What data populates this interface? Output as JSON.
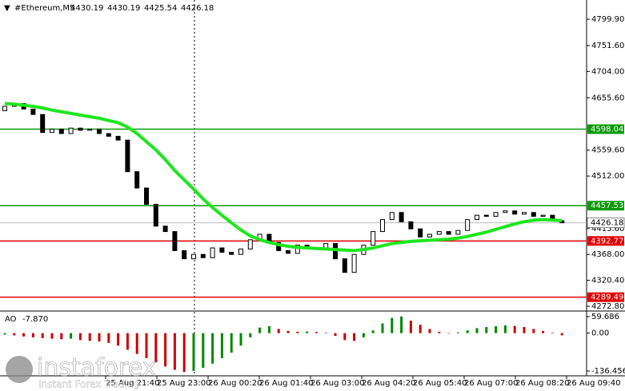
{
  "chart_data": {
    "type": "candlestick",
    "title": "#Ethereum,M5",
    "header_ohlc": [
      4430.19,
      4430.19,
      4425.54,
      4426.18
    ],
    "ylim": [
      4265.5,
      4832.3
    ],
    "yticks": [
      {
        "value": 4799.9,
        "label": "4799.90"
      },
      {
        "value": 4751.6,
        "label": "4751.60"
      },
      {
        "value": 4704,
        "label": "4704.00"
      },
      {
        "value": 4655.6,
        "label": "4655.60"
      },
      {
        "value": 4559.6,
        "label": "4559.60"
      },
      {
        "value": 4512,
        "label": "4512.00"
      },
      {
        "value": 4415.6,
        "label": "4415.60"
      },
      {
        "value": 4368,
        "label": "4368.00"
      },
      {
        "value": 4320.4,
        "label": "4320.40"
      },
      {
        "value": 4272.8,
        "label": "4272.80"
      }
    ],
    "time_labels": [
      "25 Aug 21:40",
      "25 Aug 23:00",
      "26 Aug 00:20",
      "26 Aug 01:40",
      "26 Aug 03:00",
      "26 Aug 04:20",
      "26 Aug 05:40",
      "26 Aug 07:00",
      "26 Aug 08:20",
      "26 Aug 09:40"
    ],
    "open": [
      4632,
      4640,
      4645,
      4635,
      4625,
      4592,
      4598,
      4590,
      4600,
      4596,
      4598,
      4590,
      4585,
      4578,
      4520,
      4490,
      4460,
      4420,
      4410,
      4375,
      4360,
      4368,
      4362,
      4380,
      4372,
      4368,
      4378,
      4395,
      4405,
      4390,
      4375,
      4370,
      4385,
      4380,
      4378,
      4388,
      4360,
      4335,
      4368,
      4385,
      4410,
      4432,
      4445,
      4428,
      4415,
      4400,
      4405,
      4410,
      4405,
      4412,
      4432,
      4440,
      4438,
      4445,
      4448,
      4442,
      4445,
      4438,
      4440,
      4430
    ],
    "close": [
      4640,
      4645,
      4635,
      4625,
      4592,
      4598,
      4590,
      4600,
      4596,
      4598,
      4590,
      4585,
      4578,
      4520,
      4490,
      4460,
      4420,
      4410,
      4375,
      4360,
      4368,
      4362,
      4380,
      4372,
      4368,
      4378,
      4395,
      4405,
      4390,
      4375,
      4370,
      4385,
      4380,
      4378,
      4388,
      4360,
      4335,
      4368,
      4385,
      4410,
      4432,
      4445,
      4428,
      4415,
      4400,
      4405,
      4410,
      4405,
      4412,
      4432,
      4440,
      4438,
      4445,
      4448,
      4442,
      4445,
      4438,
      4440,
      4430,
      4426.18
    ],
    "ma": {
      "color": "#1ee61e",
      "values": [
        4645,
        4644,
        4642,
        4640,
        4637,
        4633,
        4630,
        4627,
        4624,
        4621,
        4618,
        4614,
        4610,
        4602,
        4590,
        4575,
        4560,
        4542,
        4522,
        4505,
        4488,
        4470,
        4454,
        4440,
        4426,
        4413,
        4402,
        4395,
        4390,
        4386,
        4383,
        4381,
        4380,
        4379,
        4378,
        4377,
        4376,
        4375,
        4377,
        4380,
        4384,
        4388,
        4390,
        4392,
        4393,
        4394,
        4395,
        4396,
        4398,
        4401,
        4405,
        4409,
        4414,
        4419,
        4424,
        4428,
        4431,
        4432,
        4431,
        4430
      ]
    },
    "levels": [
      {
        "value": 4598.04,
        "color": "#0a9a0a"
      },
      {
        "value": 4457.53,
        "color": "#0a9a0a"
      },
      {
        "value": 4392.77,
        "color": "#e00000"
      },
      {
        "value": 4289.49,
        "color": "#e00000"
      }
    ],
    "current_price": 4426.18,
    "indicator": {
      "name": "AO",
      "current": "-7.870",
      "up_color": "#008800",
      "down_color": "#cc0000",
      "ylim": [
        -148,
        71
      ],
      "yticks": [
        59.686,
        {
          "value": 0,
          "label": "0.00"
        },
        -136.456
      ],
      "values": [
        -5,
        -8,
        -12,
        -15,
        -18,
        -20,
        -22,
        -20,
        -25,
        -28,
        -30,
        -35,
        -45,
        -60,
        -75,
        -90,
        -105,
        -120,
        -132,
        -140,
        -136,
        -125,
        -110,
        -90,
        -70,
        -45,
        -15,
        20,
        25,
        15,
        8,
        5,
        6,
        4,
        2,
        -10,
        -25,
        -28,
        -15,
        10,
        35,
        55,
        60,
        45,
        30,
        15,
        5,
        0,
        3,
        10,
        18,
        22,
        25,
        28,
        26,
        22,
        15,
        8,
        2,
        -7.87
      ]
    },
    "watermark": {
      "brand": "instaforex",
      "tagline": "Instant Forex Trading"
    }
  }
}
